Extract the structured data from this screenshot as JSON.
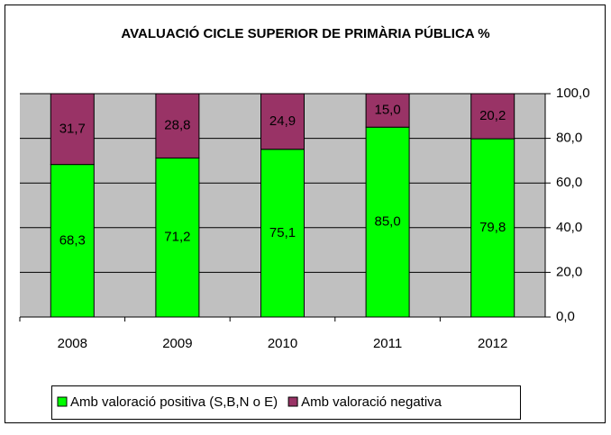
{
  "chart_data": {
    "type": "stacked_bar",
    "title": "AVALUACIÓ CICLE SUPERIOR DE PRIMÀRIA PÚBLICA %",
    "categories": [
      "2008",
      "2009",
      "2010",
      "2011",
      "2012"
    ],
    "series": [
      {
        "name": "Amb valoració positiva (S,B,N o E)",
        "color": "#00ff00",
        "values": [
          68.3,
          71.2,
          75.1,
          85.0,
          79.8
        ],
        "value_labels": [
          "68,3",
          "71,2",
          "75,1",
          "85,0",
          "79,8"
        ]
      },
      {
        "name": "Amb valoració negativa",
        "color": "#993366",
        "values": [
          31.7,
          28.8,
          24.9,
          15.0,
          20.2
        ],
        "value_labels": [
          "31,7",
          "28,8",
          "24,9",
          "15,0",
          "20,2"
        ]
      }
    ],
    "ylim": [
      0,
      100
    ],
    "yticks": [
      {
        "value": 0,
        "label": "0,0"
      },
      {
        "value": 20,
        "label": "20,0"
      },
      {
        "value": 40,
        "label": "40,0"
      },
      {
        "value": 60,
        "label": "60,0"
      },
      {
        "value": 80,
        "label": "80,0"
      },
      {
        "value": 100,
        "label": "100,0"
      }
    ],
    "grid": true
  }
}
